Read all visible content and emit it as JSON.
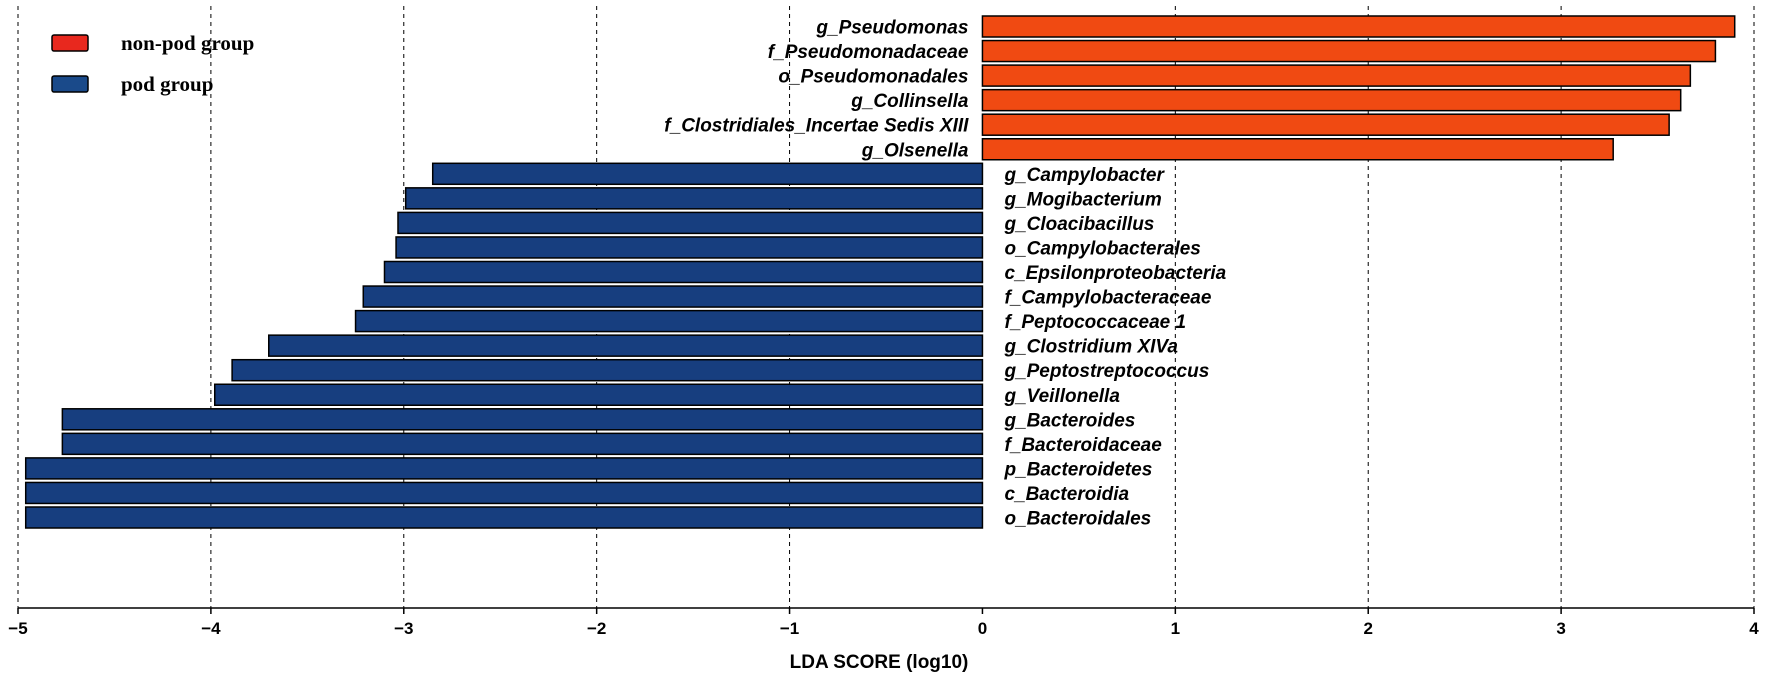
{
  "chart_data": {
    "type": "bar",
    "orientation": "horizontal",
    "xlabel": "LDA SCORE (log10)",
    "xlim": [
      -5,
      4
    ],
    "xticks": [
      -5,
      -4,
      -3,
      -2,
      -1,
      0,
      1,
      2,
      3,
      4
    ],
    "xtick_labels": [
      "−5",
      "−4",
      "−3",
      "−2",
      "−1",
      "0",
      "1",
      "2",
      "3",
      "4"
    ],
    "grid": "vertical dashed",
    "legend_position": "top-left",
    "legend": [
      {
        "label": "non-pod group",
        "color": "#e8281e"
      },
      {
        "label": "pod group",
        "color": "#1a4a8a"
      }
    ],
    "colors": {
      "non_pod": "#f04a12",
      "pod": "#173e7f"
    },
    "bars": [
      {
        "label": "g_Pseudomonas",
        "value": 3.9,
        "group": "non-pod group"
      },
      {
        "label": "f_Pseudomonadaceae",
        "value": 3.8,
        "group": "non-pod group"
      },
      {
        "label": "o_Pseudomonadales",
        "value": 3.67,
        "group": "non-pod group"
      },
      {
        "label": "g_Collinsella",
        "value": 3.62,
        "group": "non-pod group"
      },
      {
        "label": "f_Clostridiales_Incertae Sedis XIII",
        "value": 3.56,
        "group": "non-pod group"
      },
      {
        "label": "g_Olsenella",
        "value": 3.27,
        "group": "non-pod group"
      },
      {
        "label": "g_Campylobacter",
        "value": -2.85,
        "group": "pod group"
      },
      {
        "label": "g_Mogibacterium",
        "value": -2.99,
        "group": "pod group"
      },
      {
        "label": "g_Cloacibacillus",
        "value": -3.03,
        "group": "pod group"
      },
      {
        "label": "o_Campylobacterales",
        "value": -3.04,
        "group": "pod group"
      },
      {
        "label": "c_Epsilonproteobacteria",
        "value": -3.1,
        "group": "pod group"
      },
      {
        "label": "f_Campylobacteraceae",
        "value": -3.21,
        "group": "pod group"
      },
      {
        "label": "f_Peptococcaceae 1",
        "value": -3.25,
        "group": "pod group"
      },
      {
        "label": "g_Clostridium XIVa",
        "value": -3.7,
        "group": "pod group"
      },
      {
        "label": "g_Peptostreptococcus",
        "value": -3.89,
        "group": "pod group"
      },
      {
        "label": "g_Veillonella",
        "value": -3.98,
        "group": "pod group"
      },
      {
        "label": "g_Bacteroides",
        "value": -4.77,
        "group": "pod group"
      },
      {
        "label": "f_Bacteroidaceae",
        "value": -4.77,
        "group": "pod group"
      },
      {
        "label": "p_Bacteroidetes",
        "value": -4.96,
        "group": "pod group"
      },
      {
        "label": "c_Bacteroidia",
        "value": -4.96,
        "group": "pod group"
      },
      {
        "label": "o_Bacteroidales",
        "value": -4.96,
        "group": "pod group"
      }
    ]
  }
}
